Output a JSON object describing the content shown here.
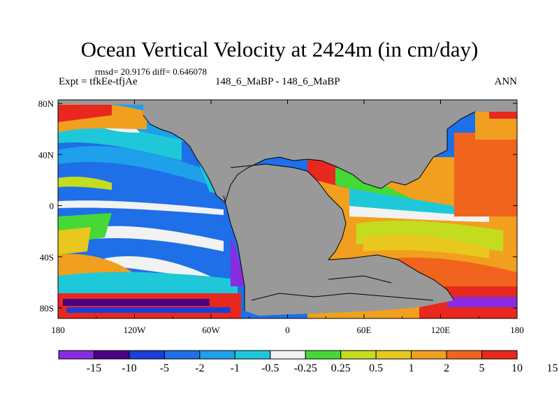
{
  "title": "Ocean Vertical Velocity at 2424m (in cm/day)",
  "stats": "rmsd= 20.9176 diff= 0.646078",
  "experiment": "Expt = tfkEe-tfjAe",
  "case": "148_6_MaBP - 148_6_MaBP",
  "season": "ANN",
  "colors": {
    "land": "#999999",
    "colorbar": [
      "#8a2be2",
      "#4b0082",
      "#1a3fd8",
      "#1e6fe8",
      "#1ea0ea",
      "#1ec8d8",
      "#f2f2f2",
      "#46d836",
      "#c4dc1e",
      "#e8c81e",
      "#f0a01e",
      "#f0641e",
      "#e8281e"
    ]
  },
  "chart_data": {
    "type": "heatmap",
    "x_ticks": [
      "180",
      "120W",
      "60W",
      "0",
      "60E",
      "120E",
      "180"
    ],
    "y_ticks": [
      "80N",
      "40N",
      "0",
      "40S",
      "80S"
    ],
    "colorbar_labels": [
      "-15",
      "-10",
      "-5",
      "-2",
      "-1",
      "-0.5",
      "-0.25",
      "0.25",
      "0.5",
      "1",
      "2",
      "5",
      "10",
      "15"
    ]
  }
}
